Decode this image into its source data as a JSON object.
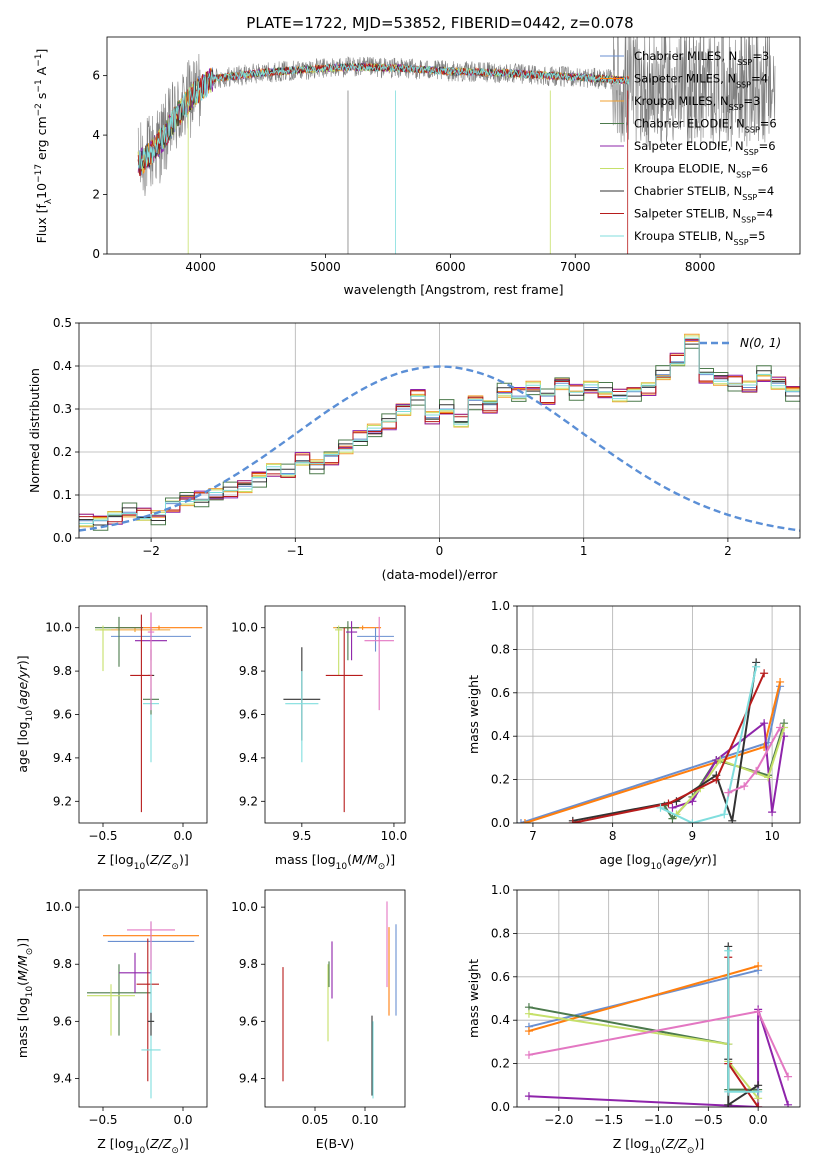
{
  "figure": {
    "title": "PLATE=1722, MJD=53852, FIBERID=0442, z=0.078"
  },
  "chart_data": [
    {
      "id": "spectrum",
      "type": "line",
      "xlabel": "wavelength [Angstrom, rest frame]",
      "ylabel": "Flux [f_λ 10^-17 erg cm^-2 s^-1 A^-1]",
      "xlim": [
        3250,
        8800
      ],
      "ylim": [
        0,
        7.3
      ],
      "xticks": [
        4000,
        5000,
        6000,
        7000,
        8000
      ],
      "yticks": [
        0,
        2,
        4,
        6
      ],
      "legend_position": "upper right",
      "legend": [
        {
          "name": "Chabrier MILES",
          "nssp": "3",
          "color": "#6a8fd0"
        },
        {
          "name": "Salpeter MILES",
          "nssp": "4",
          "color": "#ff7f0e"
        },
        {
          "name": "Kroupa MILES",
          "nssp": "3",
          "color": "#f0a030"
        },
        {
          "name": "Chabrier ELODIE",
          "nssp": "6",
          "color": "#4c7a4c"
        },
        {
          "name": "Salpeter ELODIE",
          "nssp": "6",
          "color": "#8e24aa"
        },
        {
          "name": "Kroupa ELODIE",
          "nssp": "6",
          "color": "#c6e06a"
        },
        {
          "name": "Chabrier STELIB",
          "nssp": "4",
          "color": "#333333"
        },
        {
          "name": "Salpeter STELIB",
          "nssp": "4",
          "color": "#b71c1c"
        },
        {
          "name": "Kroupa STELIB",
          "nssp": "5",
          "color": "#80dede"
        }
      ],
      "continuum": {
        "x": [
          3500,
          3600,
          3700,
          3800,
          3950,
          4100,
          4300,
          4500,
          4800,
          5200,
          5600,
          6000,
          6400,
          6800,
          7000,
          7200,
          7350
        ],
        "y": [
          3.0,
          3.4,
          3.9,
          4.6,
          5.4,
          5.9,
          6.0,
          6.1,
          6.2,
          6.3,
          6.25,
          6.15,
          6.1,
          6.0,
          5.95,
          5.9,
          5.85
        ]
      },
      "data_range": [
        3500,
        8600
      ],
      "model_range": [
        3500,
        7430
      ]
    },
    {
      "id": "residuals",
      "type": "histogram",
      "xlabel": "(data-model)/error",
      "ylabel": "Normed distribution",
      "xlim": [
        -2.5,
        2.5
      ],
      "ylim": [
        0,
        0.5
      ],
      "xticks": [
        -2,
        -1,
        0,
        1,
        2
      ],
      "yticks": [
        0,
        0.1,
        0.2,
        0.3,
        0.4,
        0.5
      ],
      "grid": true,
      "legend_position": "upper right",
      "reference_curve": {
        "name": "N(0, 1)",
        "color": "#5b8fd6",
        "mean": 0,
        "sigma": 1
      },
      "bin_width": 0.1,
      "bin_edges_start": -2.5,
      "hist_values": [
        0.04,
        0.04,
        0.05,
        0.06,
        0.05,
        0.05,
        0.08,
        0.09,
        0.09,
        0.1,
        0.11,
        0.12,
        0.14,
        0.16,
        0.15,
        0.18,
        0.17,
        0.19,
        0.21,
        0.23,
        0.25,
        0.27,
        0.3,
        0.33,
        0.28,
        0.3,
        0.27,
        0.32,
        0.31,
        0.34,
        0.33,
        0.35,
        0.33,
        0.36,
        0.34,
        0.35,
        0.34,
        0.33,
        0.34,
        0.35,
        0.38,
        0.41,
        0.46,
        0.38,
        0.37,
        0.36,
        0.35,
        0.38,
        0.36,
        0.34,
        0.36,
        0.38,
        0.33,
        0.31,
        0.3,
        0.31,
        0.29,
        0.27,
        0.26,
        0.24,
        0.21,
        0.19,
        0.17,
        0.16,
        0.15,
        0.13,
        0.12,
        0.1,
        0.1,
        0.08,
        0.07,
        0.06,
        0.05,
        0.04,
        0.05,
        0.04,
        0.03,
        0.03,
        0.03,
        0.02
      ]
    },
    {
      "id": "age-vs-Z",
      "type": "errorbar",
      "xlabel": "Z [log10(Z/Z⊙)]",
      "ylabel": "age [log10(age/yr)]",
      "xlim": [
        -0.65,
        0.15
      ],
      "ylim": [
        9.1,
        10.1
      ],
      "xticks": [
        -0.5,
        0.0
      ],
      "yticks": [
        9.2,
        9.4,
        9.6,
        9.8,
        10.0
      ],
      "points": [
        {
          "x": -0.15,
          "y": 10.0,
          "xerr": 0.27,
          "ylo": 9.99,
          "yhi": 10.01,
          "color": "#ff7f0e"
        },
        {
          "x": -0.2,
          "y": 9.96,
          "xerr": 0.25,
          "ylo": 9.93,
          "yhi": 10.0,
          "color": "#6a8fd0"
        },
        {
          "x": -0.3,
          "y": 9.99,
          "xerr": 0.22,
          "ylo": 9.98,
          "yhi": 10.0,
          "color": "#f0a030"
        },
        {
          "x": -0.4,
          "y": 10.0,
          "xerr": 0.15,
          "ylo": 9.82,
          "yhi": 10.05,
          "color": "#4c7a4c"
        },
        {
          "x": -0.2,
          "y": 9.94,
          "xerr": 0.1,
          "ylo": 9.85,
          "yhi": 10.07,
          "color": "#8e24aa"
        },
        {
          "x": -0.5,
          "y": 9.99,
          "xerr": 0.05,
          "ylo": 9.8,
          "yhi": 10.01,
          "color": "#c6e06a"
        },
        {
          "x": -0.2,
          "y": 9.78,
          "xerr": 0.02,
          "ylo": 9.7,
          "yhi": 9.9,
          "color": "#333333"
        },
        {
          "x": -0.26,
          "y": 9.78,
          "xerr": 0.07,
          "ylo": 9.15,
          "yhi": 10.06,
          "color": "#b71c1c"
        },
        {
          "x": -0.2,
          "y": 9.65,
          "xerr": 0.05,
          "ylo": 9.38,
          "yhi": 9.72,
          "color": "#80dede"
        },
        {
          "x": -0.2,
          "y": 9.67,
          "xerr": 0.05,
          "ylo": 9.6,
          "yhi": 9.7,
          "color": "#4c7a4c"
        },
        {
          "x": -0.2,
          "y": 9.98,
          "xerr": 0.02,
          "ylo": 9.62,
          "yhi": 10.07,
          "color": "#e377c2"
        }
      ]
    },
    {
      "id": "age-vs-mass",
      "type": "errorbar",
      "xlabel": "mass [log10(M/M⊙)]",
      "ylabel": "",
      "xlim": [
        9.3,
        10.06
      ],
      "ylim": [
        9.1,
        10.1
      ],
      "xticks": [
        9.5,
        10.0
      ],
      "yticks": [
        9.2,
        9.4,
        9.6,
        9.8,
        10.0
      ],
      "points": [
        {
          "x": 9.83,
          "y": 10.0,
          "xerr": 0.1,
          "ylo": 9.99,
          "yhi": 10.01,
          "color": "#ff7f0e"
        },
        {
          "x": 9.9,
          "y": 9.96,
          "xerr": 0.1,
          "ylo": 9.89,
          "yhi": 10.0,
          "color": "#6a8fd0"
        },
        {
          "x": 9.75,
          "y": 10.0,
          "xerr": 0.08,
          "ylo": 9.99,
          "yhi": 10.01,
          "color": "#f0a030"
        },
        {
          "x": 9.75,
          "y": 10.0,
          "xerr": 0.06,
          "ylo": 9.85,
          "yhi": 10.03,
          "color": "#4c7a4c"
        },
        {
          "x": 9.77,
          "y": 9.98,
          "xerr": 0.03,
          "ylo": 9.85,
          "yhi": 10.03,
          "color": "#8e24aa"
        },
        {
          "x": 9.7,
          "y": 9.99,
          "xerr": 0.02,
          "ylo": 9.78,
          "yhi": 10.01,
          "color": "#c6e06a"
        },
        {
          "x": 9.5,
          "y": 9.67,
          "xerr": 0.1,
          "ylo": 9.48,
          "yhi": 9.91,
          "color": "#333333"
        },
        {
          "x": 9.73,
          "y": 9.78,
          "xerr": 0.1,
          "ylo": 9.15,
          "yhi": 10.0,
          "color": "#b71c1c"
        },
        {
          "x": 9.5,
          "y": 9.65,
          "xerr": 0.09,
          "ylo": 9.38,
          "yhi": 9.8,
          "color": "#80dede"
        },
        {
          "x": 9.92,
          "y": 9.94,
          "xerr": 0.08,
          "ylo": 9.62,
          "yhi": 10.05,
          "color": "#e377c2"
        }
      ]
    },
    {
      "id": "mass-weight-vs-age",
      "type": "line",
      "xlabel": "age [log10(age/yr)]",
      "ylabel": "mass weight",
      "xlim": [
        6.8,
        10.35
      ],
      "ylim": [
        0,
        1
      ],
      "xticks": [
        7,
        8,
        9,
        10
      ],
      "yticks": [
        0.0,
        0.2,
        0.4,
        0.6,
        0.8,
        1.0
      ],
      "grid": true,
      "series": [
        {
          "color": "#6a8fd0",
          "x": [
            6.85,
            9.95,
            10.1
          ],
          "y": [
            0.0,
            0.37,
            0.63
          ]
        },
        {
          "color": "#ff7f0e",
          "x": [
            6.9,
            9.9,
            10.1
          ],
          "y": [
            0.0,
            0.35,
            0.65
          ]
        },
        {
          "color": "#4c7a4c",
          "x": [
            8.65,
            8.75,
            9.0,
            9.3,
            9.95,
            10.15
          ],
          "y": [
            0.08,
            0.02,
            0.12,
            0.29,
            0.22,
            0.46
          ]
        },
        {
          "color": "#8e24aa",
          "x": [
            8.75,
            9.0,
            9.3,
            9.9,
            10.0,
            10.15
          ],
          "y": [
            0.07,
            0.1,
            0.29,
            0.46,
            0.05,
            0.4
          ]
        },
        {
          "color": "#c6e06a",
          "x": [
            8.8,
            9.1,
            9.35,
            9.95,
            10.15
          ],
          "y": [
            0.04,
            0.16,
            0.29,
            0.21,
            0.44
          ]
        },
        {
          "color": "#333333",
          "x": [
            7.5,
            8.8,
            9.3,
            9.5,
            9.8
          ],
          "y": [
            0.01,
            0.1,
            0.22,
            0.01,
            0.74
          ]
        },
        {
          "color": "#b71c1c",
          "x": [
            7.5,
            8.7,
            9.3,
            9.9
          ],
          "y": [
            0.0,
            0.09,
            0.2,
            0.69
          ]
        },
        {
          "color": "#80dede",
          "x": [
            8.6,
            9.0,
            9.4,
            9.8
          ],
          "y": [
            0.07,
            0.0,
            0.04,
            0.72
          ]
        },
        {
          "color": "#e377c2",
          "x": [
            9.45,
            9.65,
            9.8,
            10.1
          ],
          "y": [
            0.14,
            0.17,
            0.24,
            0.44
          ]
        }
      ]
    },
    {
      "id": "mass-vs-Z",
      "type": "errorbar",
      "xlabel": "Z [log10(Z/Z⊙)]",
      "ylabel": "mass [log10(M/M⊙)]",
      "xlim": [
        -0.65,
        0.15
      ],
      "ylim": [
        9.3,
        10.06
      ],
      "xticks": [
        -0.5,
        0.0
      ],
      "yticks": [
        9.4,
        9.6,
        9.8,
        10.0
      ],
      "points": [
        {
          "x": -0.2,
          "y": 9.9,
          "xerr": 0.3,
          "ylo": 9.88,
          "yhi": 9.92,
          "color": "#ff7f0e"
        },
        {
          "x": -0.2,
          "y": 9.88,
          "xerr": 0.27,
          "ylo": 9.6,
          "yhi": 9.95,
          "color": "#6a8fd0"
        },
        {
          "x": -0.4,
          "y": 9.7,
          "xerr": 0.2,
          "ylo": 9.55,
          "yhi": 9.8,
          "color": "#4c7a4c"
        },
        {
          "x": -0.3,
          "y": 9.77,
          "xerr": 0.1,
          "ylo": 9.7,
          "yhi": 9.84,
          "color": "#8e24aa"
        },
        {
          "x": -0.45,
          "y": 9.69,
          "xerr": 0.15,
          "ylo": 9.55,
          "yhi": 9.73,
          "color": "#c6e06a"
        },
        {
          "x": -0.22,
          "y": 9.73,
          "xerr": 0.07,
          "ylo": 9.39,
          "yhi": 9.89,
          "color": "#b71c1c"
        },
        {
          "x": -0.2,
          "y": 9.5,
          "xerr": 0.06,
          "ylo": 9.33,
          "yhi": 9.9,
          "color": "#80dede"
        },
        {
          "x": -0.2,
          "y": 9.6,
          "xerr": 0.02,
          "ylo": 9.55,
          "yhi": 9.63,
          "color": "#333333"
        },
        {
          "x": -0.2,
          "y": 9.92,
          "xerr": 0.15,
          "ylo": 9.78,
          "yhi": 9.95,
          "color": "#e377c2"
        }
      ]
    },
    {
      "id": "mass-vs-ebv",
      "type": "errorbar",
      "xlabel": "E(B-V)",
      "ylabel": "",
      "xlim": [
        0.0,
        0.14
      ],
      "ylim": [
        9.3,
        10.06
      ],
      "xticks": [
        0.05,
        0.1
      ],
      "yticks": [
        9.4,
        9.6,
        9.8,
        10.0
      ],
      "points": [
        {
          "x": 0.018,
          "y": 9.6,
          "ylo": 9.39,
          "yhi": 9.79,
          "color": "#b71c1c"
        },
        {
          "x": 0.063,
          "y": 9.74,
          "ylo": 9.53,
          "yhi": 9.8,
          "color": "#c6e06a"
        },
        {
          "x": 0.064,
          "y": 9.77,
          "ylo": 9.72,
          "yhi": 9.81,
          "color": "#4c7a4c"
        },
        {
          "x": 0.067,
          "y": 9.78,
          "ylo": 9.68,
          "yhi": 9.88,
          "color": "#8e24aa"
        },
        {
          "x": 0.107,
          "y": 9.5,
          "ylo": 9.34,
          "yhi": 9.62,
          "color": "#333333"
        },
        {
          "x": 0.108,
          "y": 9.45,
          "ylo": 9.33,
          "yhi": 9.6,
          "color": "#80dede"
        },
        {
          "x": 0.122,
          "y": 9.87,
          "ylo": 9.72,
          "yhi": 10.02,
          "color": "#e377c2"
        },
        {
          "x": 0.124,
          "y": 9.78,
          "ylo": 9.62,
          "yhi": 9.93,
          "color": "#ff7f0e"
        },
        {
          "x": 0.131,
          "y": 9.78,
          "ylo": 9.62,
          "yhi": 9.94,
          "color": "#6a8fd0"
        }
      ]
    },
    {
      "id": "mass-weight-vs-Z",
      "type": "line",
      "xlabel": "Z [log10(Z/Z⊙)]",
      "ylabel": "mass weight",
      "xlim": [
        -2.42,
        0.42
      ],
      "ylim": [
        0,
        1
      ],
      "xticks": [
        -2.0,
        -1.5,
        -1.0,
        -0.5,
        0.0
      ],
      "yticks": [
        0.0,
        0.2,
        0.4,
        0.6,
        0.8,
        1.0
      ],
      "grid": true,
      "series": [
        {
          "color": "#6a8fd0",
          "x": [
            -2.3,
            0.0
          ],
          "y": [
            0.37,
            0.63
          ]
        },
        {
          "color": "#ff7f0e",
          "x": [
            -2.3,
            0.0
          ],
          "y": [
            0.35,
            0.65
          ]
        },
        {
          "color": "#4c7a4c",
          "x": [
            -2.3,
            -0.3,
            -0.3,
            0.0
          ],
          "y": [
            0.46,
            0.29,
            0.08,
            0.08
          ]
        },
        {
          "color": "#8e24aa",
          "x": [
            -2.3,
            0.0,
            0.0,
            0.3
          ],
          "y": [
            0.05,
            0.0,
            0.45,
            0.01
          ]
        },
        {
          "color": "#c6e06a",
          "x": [
            -2.3,
            -0.3,
            -0.3,
            0.0
          ],
          "y": [
            0.43,
            0.29,
            0.21,
            0.04
          ]
        },
        {
          "color": "#333333",
          "x": [
            -0.3,
            -0.3,
            -0.3,
            0.0
          ],
          "y": [
            0.74,
            0.22,
            0.01,
            0.1
          ]
        },
        {
          "color": "#b71c1c",
          "x": [
            -0.3,
            -0.3,
            0.0
          ],
          "y": [
            0.69,
            0.2,
            0.0
          ]
        },
        {
          "color": "#80dede",
          "x": [
            -0.3,
            -0.3,
            0.0
          ],
          "y": [
            0.72,
            0.07,
            0.07
          ]
        },
        {
          "color": "#e377c2",
          "x": [
            -2.3,
            0.0,
            0.3
          ],
          "y": [
            0.24,
            0.44,
            0.14
          ]
        }
      ]
    }
  ]
}
